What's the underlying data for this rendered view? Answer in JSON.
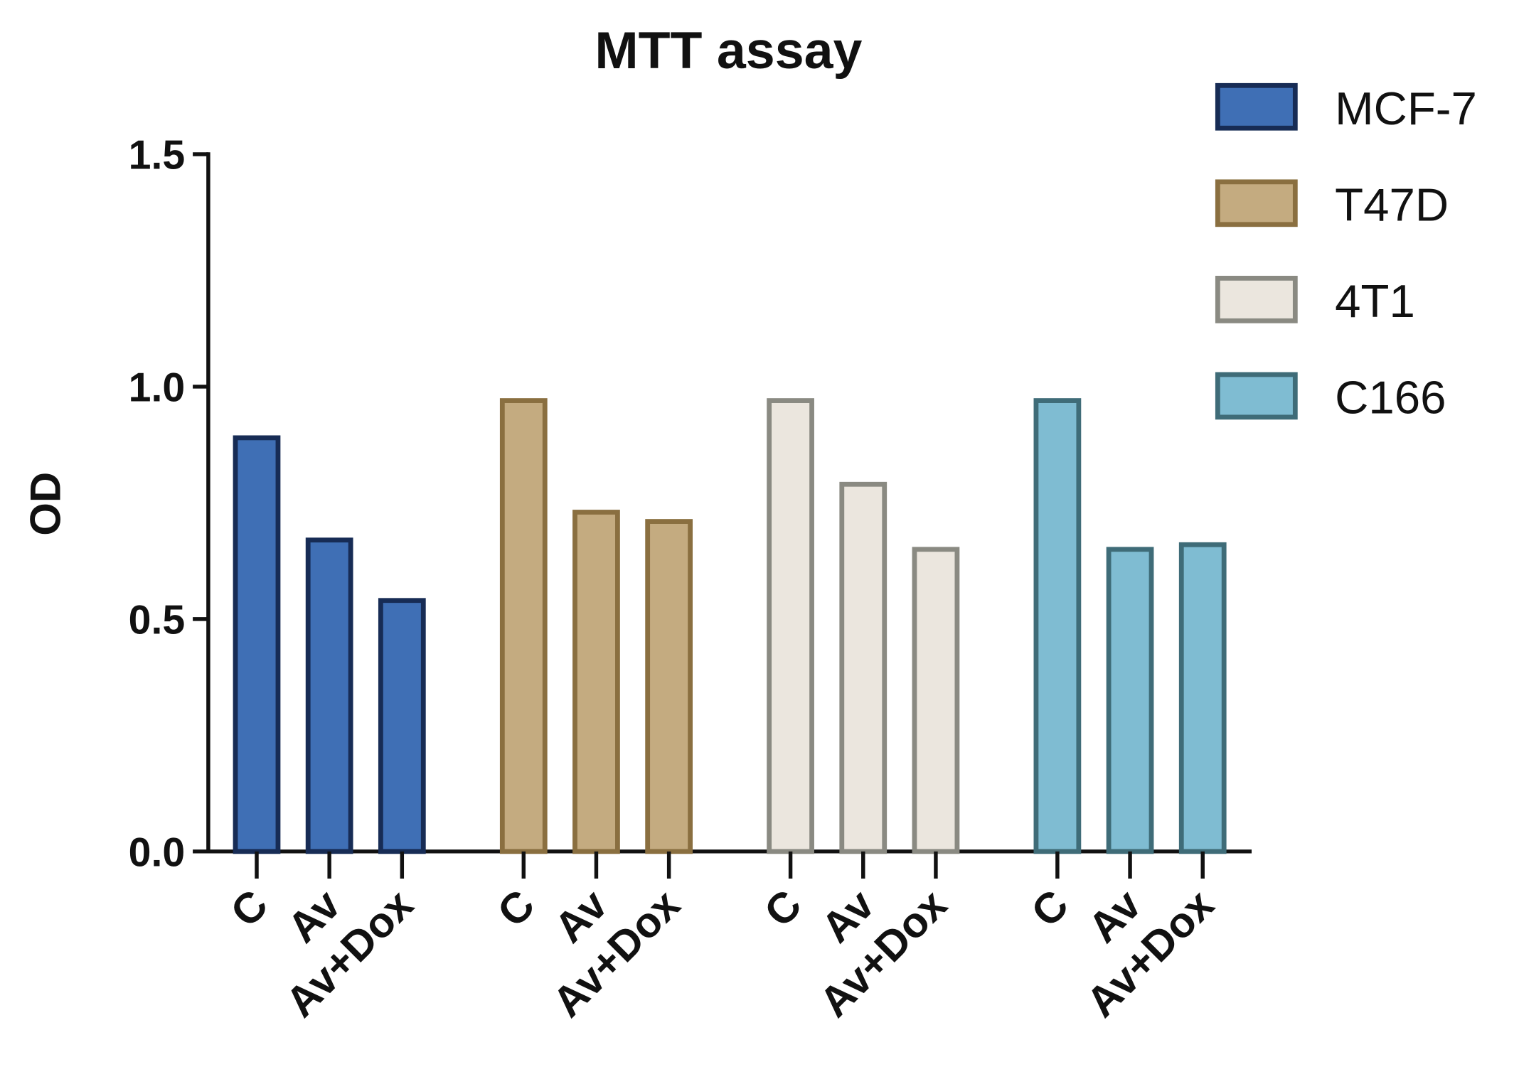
{
  "chart_data": {
    "type": "bar",
    "title": "MTT assay",
    "ylabel": "OD",
    "categories": [
      "C",
      "Av",
      "Av+Dox"
    ],
    "series": [
      {
        "name": "MCF-7",
        "color": "#3f6fb5",
        "edgecolor": "#172c55",
        "values": [
          0.89,
          0.67,
          0.54
        ]
      },
      {
        "name": "T47D",
        "color": "#c4ab80",
        "edgecolor": "#8a6f40",
        "values": [
          0.97,
          0.73,
          0.71
        ]
      },
      {
        "name": "4T1",
        "color": "#ebe6de",
        "edgecolor": "#8a8a82",
        "values": [
          0.97,
          0.79,
          0.65
        ]
      },
      {
        "name": "C166",
        "color": "#7fbcd2",
        "edgecolor": "#3f6c78",
        "values": [
          0.97,
          0.65,
          0.66
        ]
      }
    ],
    "ylim": [
      0,
      1.5
    ],
    "yticks": [
      {
        "value": 0,
        "label": "0.0"
      },
      0.5,
      {
        "value": 1,
        "label": "1.0"
      },
      1.5
    ],
    "legend": "upper right"
  }
}
